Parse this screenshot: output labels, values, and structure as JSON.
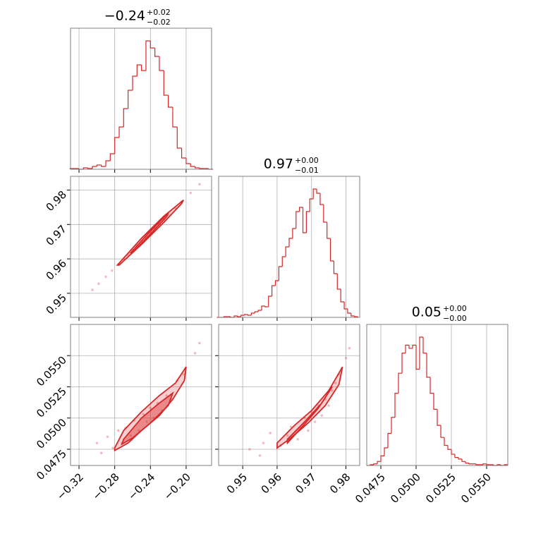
{
  "chart_data": [
    {
      "type": "histogram",
      "color": "#d62728",
      "title": {
        "value": "−0.24",
        "plus": "+0.02",
        "minus": "−0.02"
      },
      "xlim": [
        -0.3295,
        -0.1715
      ],
      "xgrid": [
        -0.32,
        -0.28,
        -0.24,
        -0.2
      ],
      "bins": [
        -0.33,
        -0.325,
        -0.32,
        -0.315,
        -0.31,
        -0.305,
        -0.3,
        -0.295,
        -0.29,
        -0.285,
        -0.28,
        -0.275,
        -0.27,
        -0.265,
        -0.26,
        -0.255,
        -0.25,
        -0.245,
        -0.24,
        -0.235,
        -0.23,
        -0.225,
        -0.22,
        -0.215,
        -0.21,
        -0.205,
        -0.2,
        -0.195,
        -0.19,
        -0.185,
        -0.18,
        -0.175,
        -0.17
      ],
      "counts": [
        1,
        1,
        0,
        2,
        1,
        4,
        6,
        4,
        12,
        22,
        45,
        60,
        86,
        112,
        132,
        148,
        140,
        182,
        172,
        160,
        140,
        105,
        88,
        60,
        30,
        16,
        8,
        4,
        2,
        1,
        1,
        0
      ]
    },
    {
      "type": "scatter",
      "color": "#d62728",
      "xlim": [
        -0.3295,
        -0.1715
      ],
      "xgrid": [
        -0.32,
        -0.28,
        -0.24,
        -0.2
      ],
      "ylim": [
        0.943,
        0.984
      ],
      "yticks": [
        0.95,
        0.96,
        0.97,
        0.98
      ],
      "x": [
        -0.305,
        -0.298,
        -0.29,
        -0.283,
        -0.276,
        -0.27,
        -0.265,
        -0.26,
        -0.255,
        -0.25,
        -0.245,
        -0.24,
        -0.235,
        -0.23,
        -0.225,
        -0.22,
        -0.212,
        -0.205,
        -0.195,
        -0.185
      ],
      "y": [
        0.951,
        0.9528,
        0.9548,
        0.9566,
        0.9584,
        0.96,
        0.9612,
        0.9625,
        0.9638,
        0.9651,
        0.9664,
        0.9676,
        0.9689,
        0.9702,
        0.9715,
        0.9728,
        0.9748,
        0.9766,
        0.9792,
        0.9817
      ],
      "contours": [
        {
          "x": [
            -0.277,
            -0.25,
            -0.225,
            -0.203,
            -0.205,
            -0.225,
            -0.25,
            -0.275
          ],
          "y": [
            0.9582,
            0.966,
            0.9724,
            0.9771,
            0.9761,
            0.9706,
            0.9642,
            0.9582
          ]
        },
        {
          "x": [
            -0.262,
            -0.24,
            -0.22,
            -0.222,
            -0.24,
            -0.26
          ],
          "y": [
            0.9618,
            0.9681,
            0.9734,
            0.9722,
            0.9672,
            0.9618
          ]
        }
      ]
    },
    {
      "type": "histogram",
      "color": "#d62728",
      "title": {
        "value": "0.97",
        "plus": "+0.00",
        "minus": "−0.01"
      },
      "xlim": [
        0.943,
        0.984
      ],
      "xgrid": [
        0.95,
        0.96,
        0.97,
        0.98
      ],
      "bins": [
        0.9425,
        0.9435,
        0.9445,
        0.9455,
        0.9465,
        0.9475,
        0.9485,
        0.9495,
        0.9505,
        0.9515,
        0.9525,
        0.9535,
        0.9545,
        0.9555,
        0.9565,
        0.9575,
        0.9585,
        0.9595,
        0.9605,
        0.9615,
        0.9625,
        0.9635,
        0.9645,
        0.9655,
        0.9665,
        0.9675,
        0.9685,
        0.9695,
        0.9705,
        0.9715,
        0.9725,
        0.9735,
        0.9745,
        0.9755,
        0.9765,
        0.9775,
        0.9785,
        0.9795,
        0.9805,
        0.9815,
        0.9825,
        0.9835
      ],
      "counts": [
        0,
        0,
        1,
        1,
        0,
        2,
        1,
        3,
        4,
        3,
        6,
        8,
        10,
        16,
        15,
        30,
        45,
        52,
        72,
        86,
        100,
        112,
        126,
        150,
        156,
        120,
        150,
        168,
        182,
        176,
        160,
        135,
        112,
        80,
        62,
        40,
        22,
        12,
        6,
        2,
        1
      ]
    },
    {
      "type": "scatter",
      "color": "#d62728",
      "xlim": [
        -0.3295,
        -0.1715
      ],
      "xticks": [
        {
          "value": -0.32,
          "label": "−0.32"
        },
        {
          "value": -0.28,
          "label": "−0.28"
        },
        {
          "value": -0.24,
          "label": "−0.24"
        },
        {
          "value": -0.2,
          "label": "−0.20"
        }
      ],
      "ylim": [
        0.0462,
        0.0575
      ],
      "yticks": [
        0.0475,
        {
          "value": 0.05,
          "label": "0.0500"
        },
        0.0525,
        {
          "value": 0.055,
          "label": "0.0550"
        }
      ],
      "x": [
        -0.295,
        -0.288,
        -0.282,
        -0.276,
        -0.272,
        -0.268,
        -0.262,
        -0.258,
        -0.253,
        -0.248,
        -0.244,
        -0.24,
        -0.236,
        -0.232,
        -0.227,
        -0.222,
        -0.216,
        -0.21,
        -0.203,
        -0.19,
        -0.185,
        -0.3
      ],
      "y": [
        0.0472,
        0.0485,
        0.0476,
        0.049,
        0.048,
        0.0492,
        0.0486,
        0.0498,
        0.049,
        0.0503,
        0.0497,
        0.0508,
        0.05,
        0.0512,
        0.0506,
        0.0518,
        0.0515,
        0.053,
        0.0535,
        0.0552,
        0.056,
        0.048
      ],
      "contours": [
        {
          "x": [
            -0.28,
            -0.27,
            -0.25,
            -0.23,
            -0.212,
            -0.2,
            -0.202,
            -0.215,
            -0.23,
            -0.25,
            -0.265,
            -0.28
          ],
          "y": [
            0.0476,
            0.049,
            0.0505,
            0.0518,
            0.0528,
            0.0541,
            0.053,
            0.0515,
            0.0502,
            0.049,
            0.048,
            0.0474
          ]
        },
        {
          "x": [
            -0.27,
            -0.25,
            -0.23,
            -0.215,
            -0.22,
            -0.24,
            -0.26,
            -0.272
          ],
          "y": [
            0.0483,
            0.05,
            0.0512,
            0.052,
            0.051,
            0.0496,
            0.0484,
            0.0479
          ]
        }
      ]
    },
    {
      "type": "scatter",
      "color": "#d62728",
      "xlim": [
        0.943,
        0.984
      ],
      "xticks": [
        0.95,
        0.96,
        0.97,
        0.98
      ],
      "ylim": [
        0.0462,
        0.0575
      ],
      "ygrid": [
        0.0475,
        0.05,
        0.0525,
        0.055
      ],
      "x": [
        0.952,
        0.956,
        0.958,
        0.961,
        0.963,
        0.964,
        0.966,
        0.967,
        0.968,
        0.969,
        0.97,
        0.971,
        0.972,
        0.973,
        0.974,
        0.975,
        0.976,
        0.977,
        0.978,
        0.98,
        0.981,
        0.955
      ],
      "y": [
        0.0475,
        0.048,
        0.0488,
        0.0478,
        0.0486,
        0.0493,
        0.0483,
        0.0492,
        0.05,
        0.049,
        0.0505,
        0.0497,
        0.051,
        0.0502,
        0.0515,
        0.051,
        0.0522,
        0.0528,
        0.0535,
        0.0548,
        0.0556,
        0.047
      ],
      "contours": [
        {
          "x": [
            0.96,
            0.965,
            0.97,
            0.975,
            0.979,
            0.978,
            0.974,
            0.969,
            0.964,
            0.96
          ],
          "y": [
            0.048,
            0.0494,
            0.0506,
            0.0522,
            0.0541,
            0.0527,
            0.051,
            0.0496,
            0.0484,
            0.0476
          ]
        },
        {
          "x": [
            0.963,
            0.968,
            0.973,
            0.976,
            0.972,
            0.967,
            0.963
          ],
          "y": [
            0.0483,
            0.0497,
            0.0512,
            0.0525,
            0.0508,
            0.0492,
            0.048
          ]
        }
      ]
    },
    {
      "type": "histogram",
      "color": "#d62728",
      "title": {
        "value": "0.05",
        "plus": "+0.00",
        "minus": "−0.00"
      },
      "xlim": [
        0.0465,
        0.0565
      ],
      "xticks": [
        0.0475,
        {
          "value": 0.05,
          "label": "0.0500"
        },
        0.0525,
        {
          "value": 0.055,
          "label": "0.0550"
        }
      ],
      "bins": [
        0.0465,
        0.04675,
        0.047,
        0.04725,
        0.0475,
        0.04775,
        0.048,
        0.04825,
        0.0485,
        0.04875,
        0.049,
        0.04925,
        0.0495,
        0.04975,
        0.05,
        0.05025,
        0.0505,
        0.05075,
        0.051,
        0.05125,
        0.0515,
        0.05175,
        0.052,
        0.05225,
        0.0525,
        0.05275,
        0.053,
        0.05325,
        0.0535,
        0.05375,
        0.054,
        0.05425,
        0.0545,
        0.05475,
        0.055,
        0.05525,
        0.0555,
        0.05575,
        0.056,
        0.05625,
        0.0565
      ],
      "counts": [
        0,
        1,
        2,
        5,
        12,
        22,
        40,
        60,
        90,
        115,
        140,
        150,
        146,
        150,
        120,
        160,
        140,
        110,
        90,
        70,
        50,
        35,
        25,
        20,
        14,
        10,
        8,
        5,
        3,
        2,
        2,
        1,
        1,
        2,
        1,
        1,
        0,
        1,
        0,
        1
      ]
    }
  ]
}
